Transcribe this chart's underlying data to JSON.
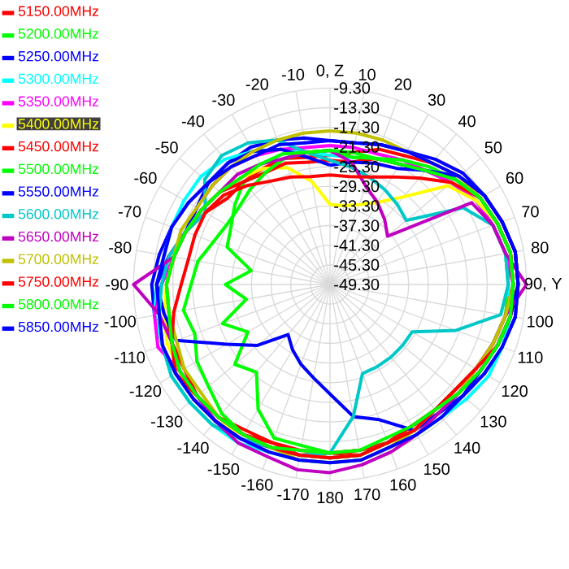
{
  "chart_data": {
    "type": "radar",
    "categories": [
      "0, Z",
      "10",
      "20",
      "30",
      "40",
      "50",
      "60",
      "70",
      "80",
      "90, Y",
      "100",
      "110",
      "120",
      "130",
      "140",
      "150",
      "160",
      "170",
      "180",
      "-170",
      "-160",
      "-150",
      "-140",
      "-130",
      "-120",
      "-110",
      "-100",
      "-90",
      "-80",
      "-70",
      "-60",
      "-50",
      "-40",
      "-30",
      "-20",
      "-10"
    ],
    "ylim": [
      -49.3,
      -9.3
    ],
    "yticks": [
      {
        "value": -49.3,
        "label": "-49.30"
      },
      {
        "value": -45.3,
        "label": "-45.30"
      },
      {
        "value": -41.3,
        "label": "-41.30"
      },
      {
        "value": -37.3,
        "label": "-37.30"
      },
      {
        "value": -33.3,
        "label": "-33.30"
      },
      {
        "value": -29.3,
        "label": "-29.30"
      },
      {
        "value": -25.3,
        "label": "-25.30"
      },
      {
        "value": -21.3,
        "label": "-21.30"
      },
      {
        "value": -17.3,
        "label": "-17.30"
      },
      {
        "value": -13.3,
        "label": "-13.30"
      },
      {
        "value": -9.3,
        "label": "-9.30"
      }
    ],
    "grid": true,
    "legend": "top left",
    "series": [
      {
        "name": "5150.00MHz",
        "color": "#ff0000",
        "values": [
          -23,
          -22,
          -20,
          -19,
          -17,
          -15,
          -13,
          -12,
          -11,
          -11,
          -12,
          -13,
          -14,
          -15,
          -16,
          -16,
          -15,
          -14,
          -15,
          -15,
          -15,
          -15,
          -14,
          -14,
          -15,
          -15,
          -15,
          -14,
          -16,
          -18,
          -20,
          -22,
          -22,
          -22,
          -22,
          -23
        ]
      },
      {
        "name": "5200.00MHz",
        "color": "#00ff00",
        "values": [
          -22,
          -23,
          -22,
          -21,
          -19,
          -17,
          -15,
          -14,
          -13,
          -13,
          -13,
          -14,
          -15,
          -16,
          -16,
          -16,
          -15,
          -15,
          -15,
          -16,
          -16,
          -20,
          -26,
          -24,
          -30,
          -26,
          -32,
          -28,
          -33,
          -27,
          -26,
          -24,
          -22,
          -23,
          -22,
          -22
        ]
      },
      {
        "name": "5250.00MHz",
        "color": "#0000ff",
        "values": [
          -20,
          -20,
          -19,
          -18,
          -16,
          -14,
          -13,
          -12,
          -11,
          -11,
          -11,
          -12,
          -13,
          -14,
          -15,
          -15,
          -15,
          -14,
          -14,
          -14,
          -14,
          -13,
          -13,
          -13,
          -13,
          -13,
          -13,
          -13,
          -14,
          -15,
          -16,
          -17,
          -17,
          -17,
          -18,
          -19
        ]
      },
      {
        "name": "5300.00MHz",
        "color": "#00ffff",
        "values": [
          -23,
          -23,
          -22,
          -21,
          -19,
          -17,
          -15,
          -14,
          -13,
          -13,
          -12,
          -12,
          -12,
          -13,
          -14,
          -14,
          -14,
          -13,
          -13,
          -13,
          -13,
          -12,
          -12,
          -12,
          -12,
          -13,
          -13,
          -14,
          -15,
          -15,
          -15,
          -15,
          -16,
          -18,
          -20,
          -22
        ]
      },
      {
        "name": "5350.00MHz",
        "color": "#ff00ff",
        "values": [
          -21,
          -21,
          -21,
          -20,
          -19,
          -17,
          -15,
          -14,
          -13,
          -12,
          -12,
          -13,
          -14,
          -15,
          -15,
          -16,
          -15,
          -14,
          -14,
          -14,
          -14,
          -14,
          -13,
          -13,
          -14,
          -12,
          -13,
          -15,
          -17,
          -18,
          -18,
          -18,
          -18,
          -19,
          -20,
          -21
        ]
      },
      {
        "name": "5400.00MHz",
        "color": "#ffff00",
        "values": [
          -33,
          -33,
          -32,
          -30,
          -26,
          -18,
          -15,
          -13,
          -12,
          -12,
          -12,
          -13,
          -14,
          -15,
          -15,
          -15,
          -15,
          -14,
          -14,
          -14,
          -14,
          -14,
          -13,
          -13,
          -14,
          -14,
          -15,
          -16,
          -17,
          -18,
          -19,
          -20,
          -21,
          -22,
          -24,
          -28
        ]
      },
      {
        "name": "5450.00MHz",
        "color": "#ff0000",
        "values": [
          -24,
          -24,
          -22,
          -21,
          -19,
          -16,
          -14,
          -13,
          -12,
          -12,
          -13,
          -14,
          -15,
          -16,
          -16,
          -16,
          -15,
          -15,
          -15,
          -14,
          -15,
          -14,
          -14,
          -14,
          -14,
          -15,
          -16,
          -16,
          -17,
          -18,
          -19,
          -20,
          -22,
          -23,
          -23,
          -24
        ]
      },
      {
        "name": "5500.00MHz",
        "color": "#00ff00",
        "values": [
          -22,
          -23,
          -22,
          -20,
          -18,
          -16,
          -14,
          -13,
          -12,
          -12,
          -12,
          -13,
          -14,
          -15,
          -15,
          -15,
          -15,
          -14,
          -14,
          -14,
          -14,
          -14,
          -15,
          -17,
          -18,
          -20,
          -19,
          -21,
          -22,
          -24,
          -25,
          -25,
          -24,
          -23,
          -22,
          -22
        ]
      },
      {
        "name": "5550.00MHz",
        "color": "#0000ff",
        "values": [
          -25,
          -24,
          -23,
          -22,
          -19,
          -15,
          -13,
          -12,
          -11,
          -11,
          -12,
          -13,
          -14,
          -14,
          -15,
          -15,
          -20,
          -22,
          -27,
          -30,
          -32,
          -34,
          -36,
          -30,
          -25,
          -16,
          -15,
          -14,
          -16,
          -18,
          -18,
          -17,
          -17,
          -18,
          -20,
          -23
        ]
      },
      {
        "name": "5600.00MHz",
        "color": "#00c8c8",
        "values": [
          -24,
          -25,
          -26,
          -27,
          -28,
          -29,
          -18,
          -14,
          -13,
          -13,
          -14,
          -22,
          -30,
          -30,
          -30,
          -30,
          -30,
          -22,
          -15,
          -14,
          -14,
          -13,
          -12,
          -12,
          -12,
          -13,
          -14,
          -15,
          -16,
          -18,
          -20,
          -16,
          -15,
          -16,
          -18,
          -22
        ]
      },
      {
        "name": "5650.00MHz",
        "color": "#c000c0",
        "values": [
          -22,
          -24,
          -28,
          -30,
          -32,
          -34,
          -16,
          -14,
          -13,
          -9.3,
          -13,
          -14,
          -15,
          -15,
          -15,
          -14,
          -13,
          -12,
          -11,
          -11,
          -12,
          -12,
          -13,
          -14,
          -14,
          -15,
          -14,
          -9.3,
          -17,
          -18,
          -19,
          -20,
          -20,
          -21,
          -22,
          -22
        ]
      },
      {
        "name": "5700.00MHz",
        "color": "#c0c000",
        "values": [
          -18,
          -18,
          -18,
          -18,
          -17,
          -15,
          -14,
          -13,
          -12,
          -12,
          -13,
          -14,
          -15,
          -15,
          -16,
          -15,
          -14,
          -13,
          -13,
          -13,
          -14,
          -14,
          -14,
          -15,
          -15,
          -16,
          -16,
          -16,
          -17,
          -17,
          -18,
          -18,
          -18,
          -18,
          -18,
          -18
        ]
      },
      {
        "name": "5750.00MHz",
        "color": "#ff0000",
        "values": [
          -27,
          -27,
          -26,
          -24,
          -21,
          -17,
          -14,
          -13,
          -12,
          -12,
          -12,
          -13,
          -15,
          -16,
          -16,
          -15,
          -15,
          -14,
          -14,
          -14,
          -14,
          -14,
          -14,
          -14,
          -13,
          -15,
          -17,
          -19,
          -20,
          -20,
          -20,
          -21,
          -23,
          -25,
          -26,
          -27
        ]
      },
      {
        "name": "5800.00MHz",
        "color": "#00ff00",
        "values": [
          -22,
          -22,
          -22,
          -21,
          -19,
          -16,
          -14,
          -13,
          -12,
          -12,
          -12,
          -13,
          -14,
          -15,
          -16,
          -16,
          -16,
          -15,
          -15,
          -15,
          -14,
          -14,
          -14,
          -14,
          -14,
          -15,
          -16,
          -16,
          -17,
          -18,
          -19,
          -20,
          -21,
          -21,
          -21,
          -22
        ]
      },
      {
        "name": "5850.00MHz",
        "color": "#0000ff",
        "values": [
          -20,
          -20,
          -19,
          -18,
          -17,
          -15,
          -13,
          -12,
          -11,
          -11,
          -11,
          -12,
          -13,
          -14,
          -14,
          -14,
          -14,
          -13,
          -13,
          -13,
          -13,
          -13,
          -13,
          -13,
          -13,
          -13,
          -14,
          -14,
          -15,
          -15,
          -16,
          -17,
          -18,
          -19,
          -19,
          -20
        ]
      }
    ]
  }
}
